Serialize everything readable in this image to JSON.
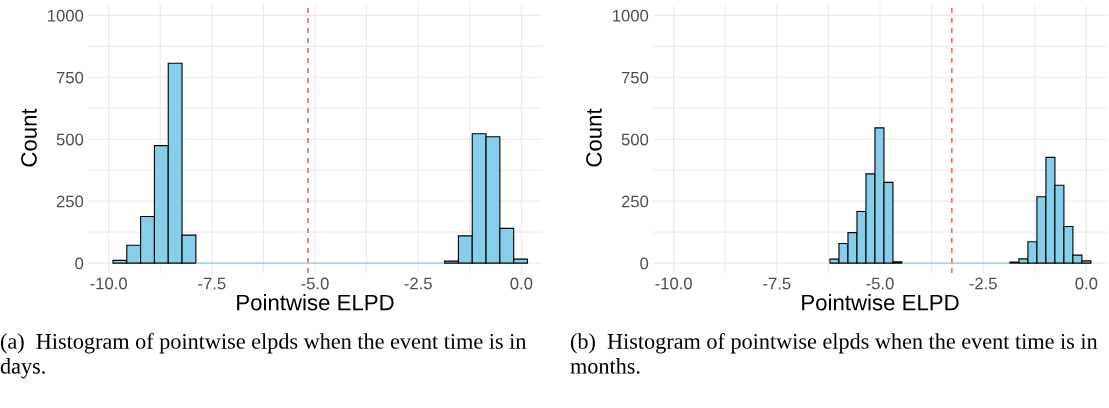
{
  "chart_data": [
    {
      "type": "histogram",
      "xlabel": "Pointwise ELPD",
      "ylabel": "Count",
      "color": "#87ceeb",
      "bins": [
        -9.895,
        -9.5602,
        -9.2254,
        -8.8906,
        -8.5558,
        -8.221,
        -7.8862,
        -7.5514,
        -7.2166,
        -6.8818,
        -6.547,
        -6.2122,
        -5.8774,
        -5.5426,
        -5.2078,
        -4.873,
        -4.5382,
        -4.2034,
        -3.8686,
        -3.5338,
        -3.199,
        -2.8642,
        -2.5294,
        -2.1946,
        -1.8598,
        -1.525,
        -1.1902,
        -0.8554,
        -0.5206,
        -0.1858,
        0.149
      ],
      "values": [
        11,
        72,
        188,
        474,
        807,
        113,
        0,
        0,
        0,
        0,
        0,
        0,
        0,
        0,
        0,
        0,
        0,
        0,
        0,
        0,
        0,
        0,
        0,
        0,
        8,
        110,
        522,
        510,
        140,
        16
      ],
      "xlim": [
        -10.5,
        0.5
      ],
      "xticks": [
        {
          "value": -10,
          "label": "-10.0"
        },
        {
          "value": -8.75,
          "label": null
        },
        {
          "value": -7.5,
          "label": "-7.5"
        },
        {
          "value": -6.25,
          "label": null
        },
        {
          "value": -5,
          "label": "-5.0"
        },
        {
          "value": -3.75,
          "label": null
        },
        {
          "value": -2.5,
          "label": "-2.5"
        },
        {
          "value": -1.25,
          "label": null
        },
        {
          "value": 0,
          "label": "0.0"
        }
      ],
      "ylim": [
        -40,
        1050
      ],
      "yticks": [
        0,
        {
          "value": 125,
          "label": null
        },
        250,
        {
          "value": 375,
          "label": null
        },
        500,
        {
          "value": 625,
          "label": null
        },
        750,
        {
          "value": 875,
          "label": null
        },
        1000
      ],
      "grid": true,
      "ref_lines": [
        {
          "axis": "x",
          "value": -5.17,
          "color": "#ff6666",
          "line_style": "dashed"
        }
      ],
      "annotations": [
        "(a)  Histogram of pointwise elpds when the event time is in days."
      ]
    },
    {
      "type": "histogram",
      "xlabel": "Pointwise ELPD",
      "ylabel": "Count",
      "color": "#87ceeb",
      "bins": [
        -6.43,
        -6.212,
        -5.994,
        -5.776,
        -5.558,
        -5.34,
        -5.122,
        -4.904,
        -4.686,
        -4.468,
        -4.25,
        -4.032,
        -3.814,
        -3.596,
        -3.378,
        -3.16,
        -2.942,
        -2.724,
        -2.506,
        -2.288,
        -2.07,
        -1.852,
        -1.634,
        -1.416,
        -1.198,
        -0.98,
        -0.762,
        -0.544,
        -0.326,
        -0.108,
        0.11
      ],
      "values": [
        null,
        16,
        79,
        123,
        208,
        360,
        546,
        326,
        5,
        0,
        0,
        0,
        0,
        0,
        0,
        0,
        0,
        0,
        0,
        0,
        0,
        4,
        17,
        86,
        268,
        427,
        314,
        148,
        32,
        9
      ],
      "xlim": [
        -10.5,
        0.5
      ],
      "xticks": [
        {
          "value": -10,
          "label": "-10.0"
        },
        {
          "value": -8.75,
          "label": null
        },
        {
          "value": -7.5,
          "label": "-7.5"
        },
        {
          "value": -6.25,
          "label": null
        },
        {
          "value": -5,
          "label": "-5.0"
        },
        {
          "value": -3.75,
          "label": null
        },
        {
          "value": -2.5,
          "label": "-2.5"
        },
        {
          "value": -1.25,
          "label": null
        },
        {
          "value": 0,
          "label": "0.0"
        }
      ],
      "ylim": [
        -40,
        1050
      ],
      "yticks": [
        0,
        {
          "value": 125,
          "label": null
        },
        250,
        {
          "value": 375,
          "label": null
        },
        500,
        {
          "value": 625,
          "label": null
        },
        750,
        {
          "value": 875,
          "label": null
        },
        1000
      ],
      "grid": true,
      "ref_lines": [
        {
          "axis": "x",
          "value": -3.26,
          "color": "#ff6666",
          "line_style": "dashed"
        }
      ],
      "annotations": [
        "(b)  Histogram of pointwise elpds when the event time is in months."
      ]
    }
  ]
}
